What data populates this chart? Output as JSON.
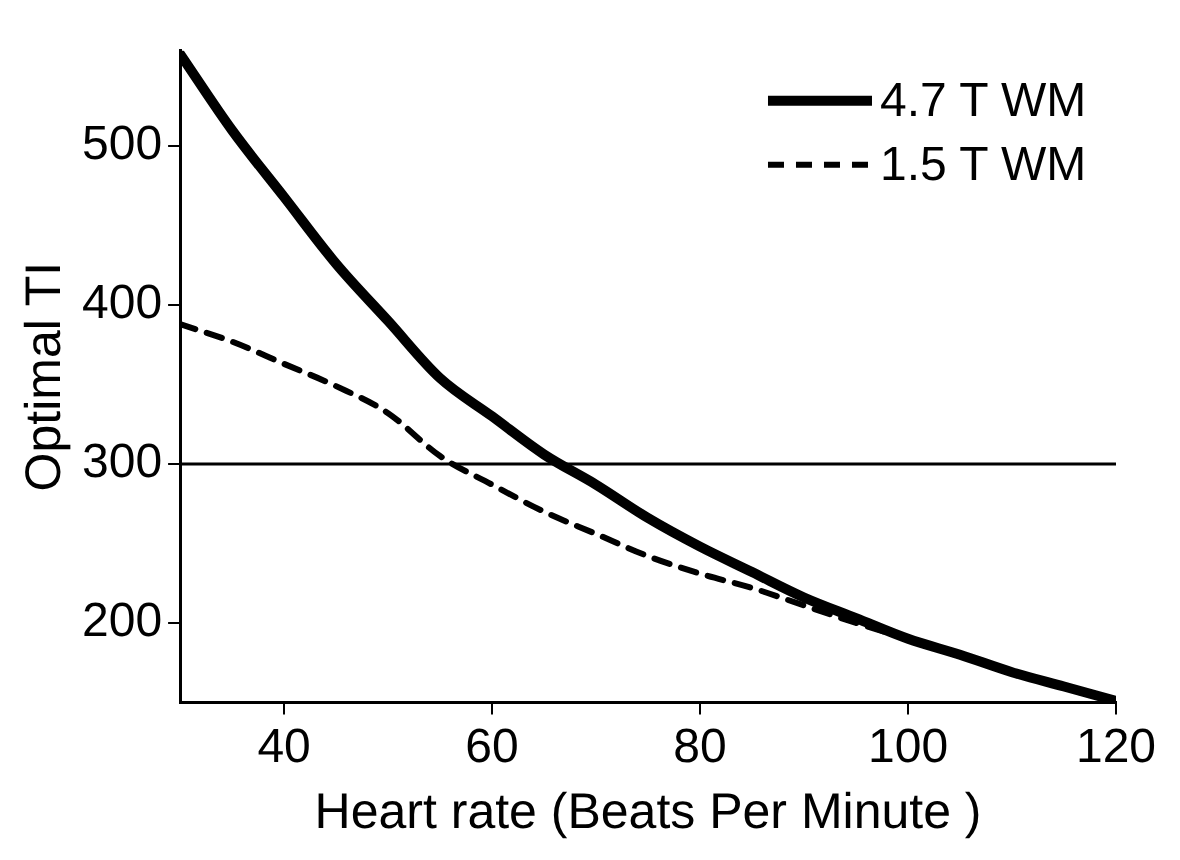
{
  "chart_data": {
    "type": "line",
    "xlabel": "Heart rate (Beats Per Minute )",
    "ylabel": "Optimal TI",
    "x": [
      30,
      35,
      40,
      45,
      50,
      55,
      60,
      65,
      70,
      75,
      80,
      85,
      90,
      95,
      100,
      105,
      110,
      115,
      120
    ],
    "series": [
      {
        "name": "4.7 T WM",
        "color": "#000000",
        "line_style": "solid",
        "values": [
          558,
          510,
          468,
          426,
          390,
          354,
          330,
          306,
          287,
          266,
          248,
          232,
          216,
          203,
          190,
          180,
          169,
          160,
          151
        ]
      },
      {
        "name": "1.5 T WM",
        "color": "#000000",
        "line_style": "dashed",
        "values": [
          388,
          377,
          363,
          349,
          332,
          305,
          287,
          270,
          256,
          242,
          231,
          222,
          211,
          200,
          190,
          180,
          169,
          160,
          151
        ]
      }
    ],
    "xlim": [
      30,
      120
    ],
    "xticks": [
      40,
      60,
      80,
      100,
      120
    ],
    "ylim": [
      150,
      560
    ],
    "yticks": [
      200,
      300,
      400,
      500
    ],
    "ref_lines": [
      {
        "axis": "y",
        "value": 300,
        "color": "#000000"
      }
    ],
    "grid": false,
    "legend": "top right",
    "marker": "none"
  }
}
